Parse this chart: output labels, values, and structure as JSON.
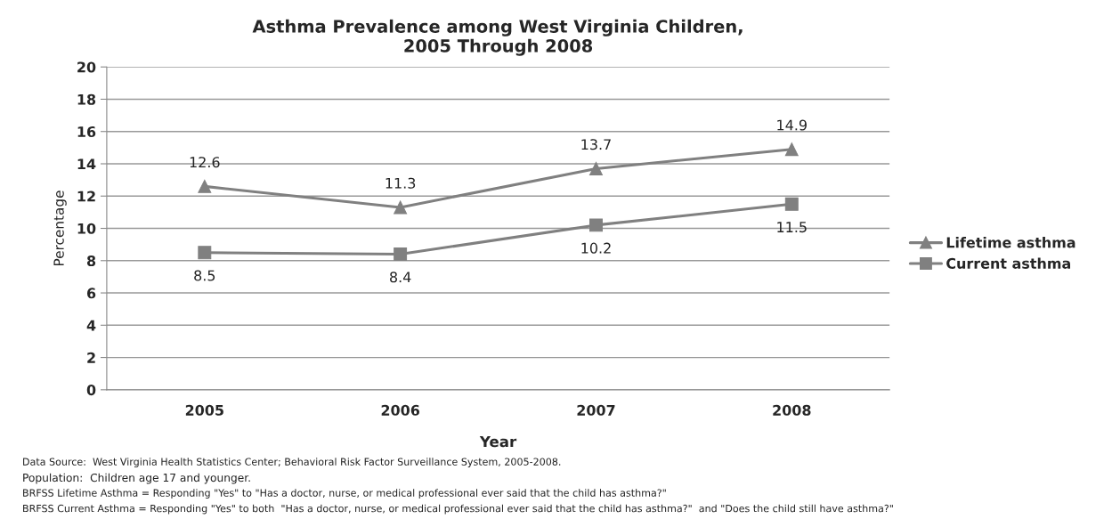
{
  "chart_data": {
    "type": "line",
    "title": "Asthma Prevalence among West Virginia Children,\n2005 Through 2008",
    "xlabel": "Year",
    "ylabel": "Percentage",
    "categories": [
      "2005",
      "2006",
      "2007",
      "2008"
    ],
    "series": [
      {
        "name": "Lifetime asthma",
        "color": "#808080",
        "marker": "triangle",
        "values": [
          12.6,
          11.3,
          13.7,
          14.9
        ]
      },
      {
        "name": "Current asthma",
        "color": "#808080",
        "marker": "square",
        "values": [
          8.5,
          8.4,
          10.2,
          11.5
        ]
      }
    ],
    "ylim": [
      0,
      20
    ],
    "yticks": [
      0,
      2,
      4,
      6,
      8,
      10,
      12,
      14,
      16,
      18,
      20
    ],
    "grid": "y",
    "legend": "right",
    "data_labels": true,
    "line_style": "solid",
    "annotations": [
      "Data Source:  West Virginia Health Statistics Center; Behavioral Risk Factor Surveillance System, 2005-2008.",
      "Population:  Children age 17 and younger.",
      "BRFSS Lifetime Asthma = Responding \"Yes\" to \"Has a doctor, nurse, or medical professional ever said that the child has asthma?\"",
      "BRFSS Current Asthma = Responding \"Yes\" to both  \"Has a doctor, nurse, or medical professional ever said that the child has asthma?\"  and \"Does the child still have asthma?\""
    ]
  }
}
